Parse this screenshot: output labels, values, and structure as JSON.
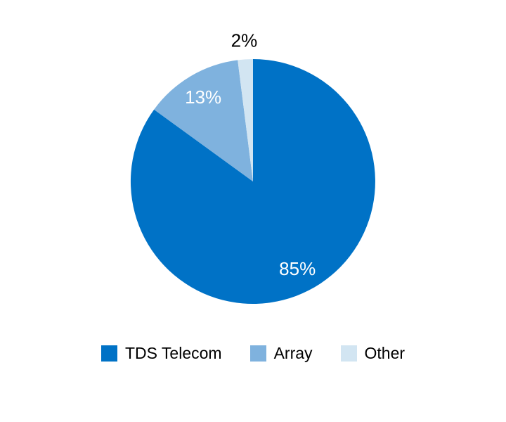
{
  "page": {
    "background": "#ffffff"
  },
  "chart_data": {
    "type": "pie",
    "title": "",
    "categories": [
      "TDS Telecom",
      "Array",
      "Other"
    ],
    "values": [
      85,
      13,
      2
    ],
    "unit": "%",
    "data_labels": [
      "85%",
      "13%",
      "2%"
    ],
    "colors": [
      "#0072C6",
      "#7FB2DE",
      "#D2E5F2"
    ],
    "label_colors": [
      "#ffffff",
      "#ffffff",
      "#000000"
    ],
    "label_placement": [
      "inside",
      "inside",
      "outside"
    ],
    "start_angle_deg": 0,
    "direction": "clockwise",
    "grid": false,
    "legend_position": "bottom",
    "legend": [
      {
        "label": "TDS Telecom",
        "color": "#0072C6"
      },
      {
        "label": "Array",
        "color": "#7FB2DE"
      },
      {
        "label": "Other",
        "color": "#D2E5F2"
      }
    ]
  }
}
